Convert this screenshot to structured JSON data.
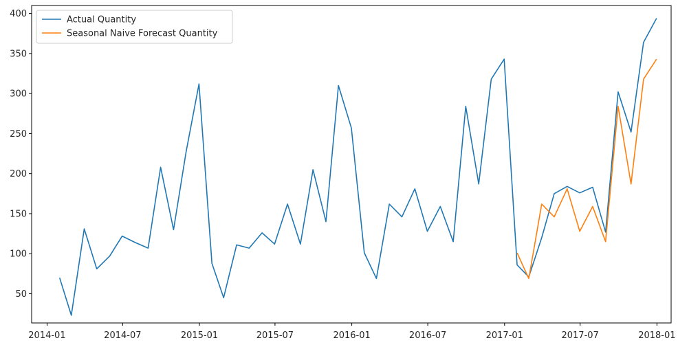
{
  "chart_data": {
    "type": "line",
    "title": "",
    "xlabel": "",
    "ylabel": "",
    "x_range": [
      "2013-11-25",
      "2018-02-04"
    ],
    "ylim": [
      13.5,
      410
    ],
    "x_ticks": [
      "2014-01",
      "2014-07",
      "2015-01",
      "2015-07",
      "2016-01",
      "2016-07",
      "2017-01",
      "2017-07",
      "2018-01"
    ],
    "y_ticks": [
      50,
      100,
      150,
      200,
      250,
      300,
      350,
      400
    ],
    "grid": false,
    "legend_position": "upper-left",
    "series": [
      {
        "name": "Actual Quantity",
        "color": "#1f77b4",
        "points": [
          [
            "2014-01-31",
            70
          ],
          [
            "2014-02-28",
            23
          ],
          [
            "2014-03-31",
            131
          ],
          [
            "2014-04-30",
            81
          ],
          [
            "2014-05-31",
            97
          ],
          [
            "2014-06-30",
            122
          ],
          [
            "2014-07-31",
            114
          ],
          [
            "2014-08-31",
            107
          ],
          [
            "2014-09-30",
            208
          ],
          [
            "2014-10-31",
            130
          ],
          [
            "2014-11-30",
            227
          ],
          [
            "2014-12-31",
            312
          ],
          [
            "2015-01-31",
            88
          ],
          [
            "2015-02-28",
            45
          ],
          [
            "2015-03-31",
            111
          ],
          [
            "2015-04-30",
            107
          ],
          [
            "2015-05-31",
            126
          ],
          [
            "2015-06-30",
            112
          ],
          [
            "2015-07-31",
            162
          ],
          [
            "2015-08-31",
            112
          ],
          [
            "2015-09-30",
            205
          ],
          [
            "2015-10-31",
            140
          ],
          [
            "2015-11-30",
            310
          ],
          [
            "2015-12-31",
            257
          ],
          [
            "2016-01-31",
            101
          ],
          [
            "2016-02-29",
            69
          ],
          [
            "2016-03-31",
            162
          ],
          [
            "2016-04-30",
            146
          ],
          [
            "2016-05-31",
            181
          ],
          [
            "2016-06-30",
            128
          ],
          [
            "2016-07-31",
            159
          ],
          [
            "2016-08-31",
            115
          ],
          [
            "2016-09-30",
            284
          ],
          [
            "2016-10-31",
            187
          ],
          [
            "2016-11-30",
            318
          ],
          [
            "2016-12-31",
            343
          ],
          [
            "2017-01-31",
            86
          ],
          [
            "2017-02-28",
            71
          ],
          [
            "2017-03-31",
            120
          ],
          [
            "2017-04-30",
            175
          ],
          [
            "2017-05-31",
            184
          ],
          [
            "2017-06-30",
            176
          ],
          [
            "2017-07-31",
            183
          ],
          [
            "2017-08-31",
            127
          ],
          [
            "2017-09-30",
            302
          ],
          [
            "2017-10-31",
            252
          ],
          [
            "2017-11-30",
            364
          ],
          [
            "2017-12-31",
            394
          ]
        ]
      },
      {
        "name": "Seasonal Naive Forecast Quantity",
        "color": "#ff7f0e",
        "points": [
          [
            "2017-01-31",
            101
          ],
          [
            "2017-02-28",
            69
          ],
          [
            "2017-03-31",
            162
          ],
          [
            "2017-04-30",
            146
          ],
          [
            "2017-05-31",
            181
          ],
          [
            "2017-06-30",
            128
          ],
          [
            "2017-07-31",
            159
          ],
          [
            "2017-08-31",
            115
          ],
          [
            "2017-09-30",
            284
          ],
          [
            "2017-10-31",
            187
          ],
          [
            "2017-11-30",
            318
          ],
          [
            "2017-12-31",
            343
          ]
        ]
      }
    ]
  }
}
